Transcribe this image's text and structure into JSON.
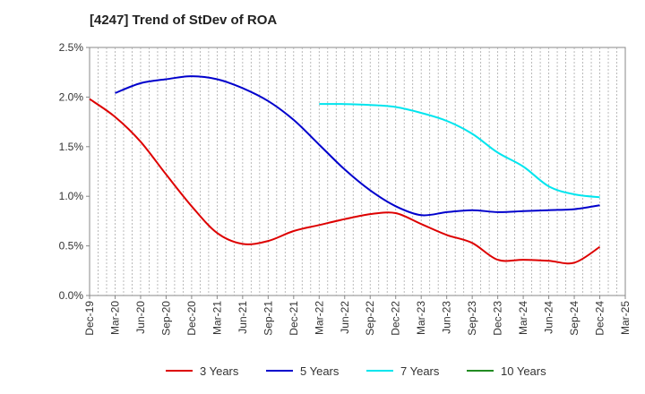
{
  "chart_data": {
    "type": "line",
    "title": "[4247]  Trend of StDev of ROA",
    "xlabel": "",
    "ylabel": "",
    "y_ticks": [
      "0.0%",
      "0.5%",
      "1.0%",
      "1.5%",
      "2.0%",
      "2.5%"
    ],
    "ylim": [
      0,
      2.5
    ],
    "x_ticks": [
      "Dec-19",
      "Mar-20",
      "Jun-20",
      "Sep-20",
      "Dec-20",
      "Mar-21",
      "Jun-21",
      "Sep-21",
      "Dec-21",
      "Mar-22",
      "Jun-22",
      "Sep-22",
      "Dec-22",
      "Mar-23",
      "Jun-23",
      "Sep-23",
      "Dec-23",
      "Mar-24",
      "Jun-24",
      "Sep-24",
      "Dec-24",
      "Mar-25"
    ],
    "grid": "vertical-dashed",
    "legend_position": "bottom",
    "series": [
      {
        "name": "3 Years",
        "color": "#dd0000",
        "x": [
          "Dec-19",
          "Mar-20",
          "Jun-20",
          "Sep-20",
          "Dec-20",
          "Mar-21",
          "Jun-21",
          "Sep-21",
          "Dec-21",
          "Mar-22",
          "Jun-22",
          "Sep-22",
          "Dec-22",
          "Mar-23",
          "Jun-23",
          "Sep-23",
          "Dec-23",
          "Mar-24",
          "Jun-24",
          "Sep-24",
          "Dec-24"
        ],
        "values": [
          1.98,
          1.8,
          1.55,
          1.22,
          0.9,
          0.63,
          0.52,
          0.55,
          0.65,
          0.71,
          0.77,
          0.82,
          0.83,
          0.72,
          0.61,
          0.53,
          0.36,
          0.36,
          0.35,
          0.33,
          0.49
        ]
      },
      {
        "name": "5 Years",
        "color": "#0000cc",
        "x": [
          "Mar-20",
          "Jun-20",
          "Sep-20",
          "Dec-20",
          "Mar-21",
          "Jun-21",
          "Sep-21",
          "Dec-21",
          "Mar-22",
          "Jun-22",
          "Sep-22",
          "Dec-22",
          "Mar-23",
          "Jun-23",
          "Sep-23",
          "Dec-23",
          "Mar-24",
          "Jun-24",
          "Sep-24",
          "Dec-24"
        ],
        "values": [
          2.04,
          2.14,
          2.18,
          2.21,
          2.18,
          2.09,
          1.96,
          1.77,
          1.52,
          1.27,
          1.06,
          0.9,
          0.81,
          0.84,
          0.86,
          0.84,
          0.85,
          0.86,
          0.87,
          0.91
        ]
      },
      {
        "name": "7 Years",
        "color": "#00e5ee",
        "x": [
          "Mar-22",
          "Jun-22",
          "Sep-22",
          "Dec-22",
          "Mar-23",
          "Jun-23",
          "Sep-23",
          "Dec-23",
          "Mar-24",
          "Jun-24",
          "Sep-24",
          "Dec-24"
        ],
        "values": [
          1.93,
          1.93,
          1.92,
          1.9,
          1.84,
          1.76,
          1.63,
          1.44,
          1.3,
          1.1,
          1.02,
          0.99
        ]
      },
      {
        "name": "10 Years",
        "color": "#228b22",
        "x": [],
        "values": []
      }
    ]
  }
}
